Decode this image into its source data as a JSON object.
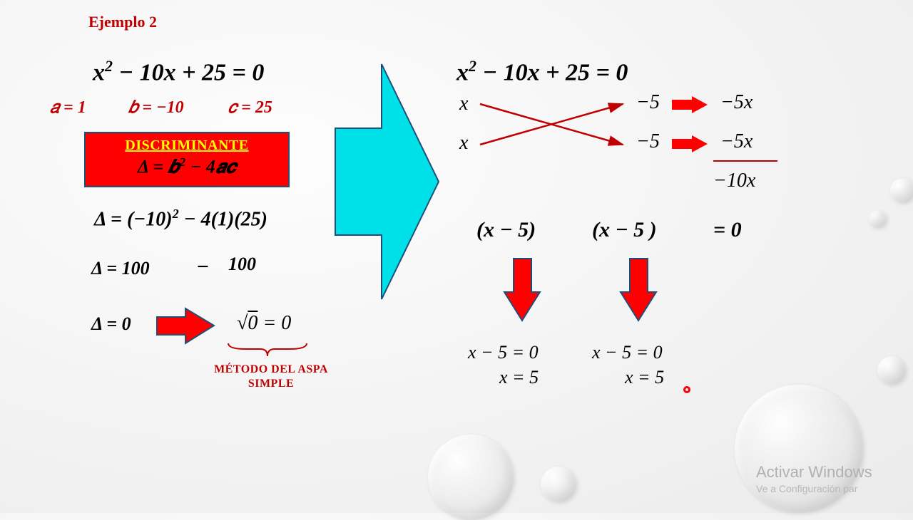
{
  "title": "Ejemplo 2",
  "left": {
    "equation": "x<sup>2</sup> − 10x + 25 = 0",
    "a": "𝑎 = 1",
    "b": "𝑏 = −10",
    "c": "𝑐 = 25",
    "disc_title": "DISCRIMINANTE",
    "disc_formula": "Δ = 𝒃<sup>2</sup> − 4𝒂𝒄",
    "calc1": "Δ = (−10)<sup>2</sup> − 4(1)(25)",
    "calc2a": "Δ = 100",
    "calc2b": "−",
    "calc2c": "100",
    "calc3": "Δ = 0",
    "sqrt": "√<span style='text-decoration:overline'>0</span> = 0",
    "method1": "MÉTODO DEL ASPA",
    "method2": "SIMPLE"
  },
  "right": {
    "equation": "x<sup>2</sup> − 10x + 25 = 0",
    "x1": "x",
    "x2": "x",
    "n1": "−5",
    "n2": "−5",
    "p1": "−5x",
    "p2": "−5x",
    "sum": "−10x",
    "f1": "(x − 5)",
    "f2": "(x − 5 )",
    "eq0": "= 0",
    "s1a": "x − 5 = 0",
    "s1b": "x = 5",
    "s2a": "x − 5 = 0",
    "s2b": "x = 5"
  },
  "watermark": {
    "line1": "Activar Windows",
    "line2": "Ve a Configuración par"
  },
  "colors": {
    "accent_red": "#c00000",
    "box_red": "#ff0000",
    "box_border": "#1f4e79",
    "arrow_big": "#00e0e8",
    "arrow_red": "#ff0000"
  }
}
